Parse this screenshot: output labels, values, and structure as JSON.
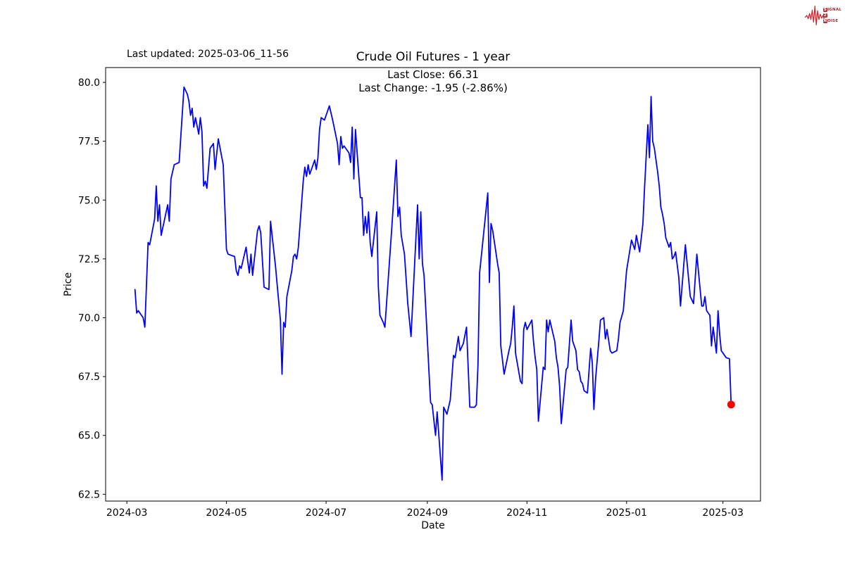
{
  "figure": {
    "last_updated": "Last updated: 2025-03-06_11-56",
    "title": "Crude Oil Futures - 1 year",
    "annotation_line1": "Last Close: 66.31",
    "annotation_line2": "Last Change: -1.95 (-2.86%)"
  },
  "logo": {
    "line1_boxed": "S",
    "line1_rest": "IGNAL",
    "line2_boxed": "2",
    "line2_rest": "",
    "line3_boxed": "N",
    "line3_rest": "OISE",
    "accent_color": "#c4272e"
  },
  "chart_data": {
    "type": "line",
    "title": "Crude Oil Futures - 1 year",
    "xlabel": "Date",
    "ylabel": "Price",
    "line_color": "#0000ff",
    "last_point_color": "#ff0000",
    "background": "#ffffff",
    "grid": false,
    "legend": false,
    "last_close": 66.31,
    "last_change": "-1.95 (-2.86%)",
    "x_range": [
      "2024-02-17",
      "2025-03-24"
    ],
    "ylim": [
      62.21,
      80.63
    ],
    "y_ticks": [
      {
        "v": 62.5,
        "label": "62.5"
      },
      {
        "v": 65.0,
        "label": "65.0"
      },
      {
        "v": 67.5,
        "label": "67.5"
      },
      {
        "v": 70.0,
        "label": "70.0"
      },
      {
        "v": 72.5,
        "label": "72.5"
      },
      {
        "v": 75.0,
        "label": "75.0"
      },
      {
        "v": 77.5,
        "label": "77.5"
      },
      {
        "v": 80.0,
        "label": "80.0"
      }
    ],
    "x_ticks": [
      {
        "date": "2024-03-01",
        "label": "2024-03"
      },
      {
        "date": "2024-05-01",
        "label": "2024-05"
      },
      {
        "date": "2024-07-01",
        "label": "2024-07"
      },
      {
        "date": "2024-09-01",
        "label": "2024-09"
      },
      {
        "date": "2024-11-01",
        "label": "2024-11"
      },
      {
        "date": "2025-01-01",
        "label": "2025-01"
      },
      {
        "date": "2025-03-01",
        "label": "2025-03"
      }
    ],
    "series": [
      {
        "name": "Crude Oil Futures",
        "points": [
          [
            "2024-03-06",
            71.2
          ],
          [
            "2024-03-07",
            70.2
          ],
          [
            "2024-03-08",
            70.3
          ],
          [
            "2024-03-11",
            70.0
          ],
          [
            "2024-03-12",
            69.6
          ],
          [
            "2024-03-14",
            73.2
          ],
          [
            "2024-03-15",
            73.1
          ],
          [
            "2024-03-18",
            74.2
          ],
          [
            "2024-03-19",
            75.6
          ],
          [
            "2024-03-20",
            74.1
          ],
          [
            "2024-03-21",
            74.8
          ],
          [
            "2024-03-22",
            73.5
          ],
          [
            "2024-03-26",
            74.8
          ],
          [
            "2024-03-27",
            74.1
          ],
          [
            "2024-03-28",
            75.9
          ],
          [
            "2024-03-30",
            76.5
          ],
          [
            "2024-04-02",
            76.6
          ],
          [
            "2024-04-05",
            79.8
          ],
          [
            "2024-04-07",
            79.5
          ],
          [
            "2024-04-08",
            79.2
          ],
          [
            "2024-04-09",
            78.6
          ],
          [
            "2024-04-10",
            78.9
          ],
          [
            "2024-04-11",
            78.1
          ],
          [
            "2024-04-12",
            78.5
          ],
          [
            "2024-04-14",
            77.8
          ],
          [
            "2024-04-15",
            78.5
          ],
          [
            "2024-04-16",
            77.9
          ],
          [
            "2024-04-17",
            75.6
          ],
          [
            "2024-04-18",
            75.8
          ],
          [
            "2024-04-19",
            75.5
          ],
          [
            "2024-04-21",
            77.2
          ],
          [
            "2024-04-23",
            77.4
          ],
          [
            "2024-04-24",
            76.3
          ],
          [
            "2024-04-26",
            77.6
          ],
          [
            "2024-04-29",
            76.5
          ],
          [
            "2024-05-01",
            72.9
          ],
          [
            "2024-05-02",
            72.7
          ],
          [
            "2024-05-06",
            72.6
          ],
          [
            "2024-05-07",
            72.0
          ],
          [
            "2024-05-08",
            71.8
          ],
          [
            "2024-05-09",
            72.2
          ],
          [
            "2024-05-10",
            72.1
          ],
          [
            "2024-05-13",
            73.0
          ],
          [
            "2024-05-14",
            72.4
          ],
          [
            "2024-05-15",
            71.9
          ],
          [
            "2024-05-16",
            72.7
          ],
          [
            "2024-05-17",
            71.8
          ],
          [
            "2024-05-20",
            73.7
          ],
          [
            "2024-05-21",
            73.9
          ],
          [
            "2024-05-22",
            73.6
          ],
          [
            "2024-05-24",
            71.3
          ],
          [
            "2024-05-27",
            71.2
          ],
          [
            "2024-05-28",
            74.1
          ],
          [
            "2024-05-31",
            72.2
          ],
          [
            "2024-06-03",
            69.9
          ],
          [
            "2024-06-04",
            67.6
          ],
          [
            "2024-06-05",
            69.8
          ],
          [
            "2024-06-06",
            69.6
          ],
          [
            "2024-06-07",
            70.9
          ],
          [
            "2024-06-10",
            72.0
          ],
          [
            "2024-06-11",
            72.6
          ],
          [
            "2024-06-12",
            72.7
          ],
          [
            "2024-06-13",
            72.5
          ],
          [
            "2024-06-14",
            73.0
          ],
          [
            "2024-06-17",
            75.8
          ],
          [
            "2024-06-18",
            76.4
          ],
          [
            "2024-06-19",
            76.0
          ],
          [
            "2024-06-20",
            76.5
          ],
          [
            "2024-06-21",
            76.1
          ],
          [
            "2024-06-24",
            76.7
          ],
          [
            "2024-06-25",
            76.3
          ],
          [
            "2024-06-26",
            76.8
          ],
          [
            "2024-06-27",
            78.0
          ],
          [
            "2024-06-28",
            78.5
          ],
          [
            "2024-06-30",
            78.4
          ],
          [
            "2024-07-03",
            79.0
          ],
          [
            "2024-07-05",
            78.4
          ],
          [
            "2024-07-08",
            77.4
          ],
          [
            "2024-07-09",
            76.5
          ],
          [
            "2024-07-10",
            77.7
          ],
          [
            "2024-07-11",
            77.2
          ],
          [
            "2024-07-12",
            77.3
          ],
          [
            "2024-07-15",
            77.0
          ],
          [
            "2024-07-16",
            76.6
          ],
          [
            "2024-07-17",
            78.1
          ],
          [
            "2024-07-18",
            75.9
          ],
          [
            "2024-07-19",
            78.0
          ],
          [
            "2024-07-22",
            75.1
          ],
          [
            "2024-07-23",
            75.1
          ],
          [
            "2024-07-24",
            73.5
          ],
          [
            "2024-07-25",
            74.3
          ],
          [
            "2024-07-26",
            73.6
          ],
          [
            "2024-07-27",
            74.5
          ],
          [
            "2024-07-28",
            73.2
          ],
          [
            "2024-07-29",
            72.6
          ],
          [
            "2024-08-01",
            74.5
          ],
          [
            "2024-08-02",
            71.3
          ],
          [
            "2024-08-03",
            70.1
          ],
          [
            "2024-08-05",
            69.8
          ],
          [
            "2024-08-06",
            69.6
          ],
          [
            "2024-08-10",
            73.6
          ],
          [
            "2024-08-13",
            76.7
          ],
          [
            "2024-08-14",
            74.3
          ],
          [
            "2024-08-15",
            74.7
          ],
          [
            "2024-08-16",
            73.5
          ],
          [
            "2024-08-18",
            72.7
          ],
          [
            "2024-08-20",
            70.6
          ],
          [
            "2024-08-22",
            69.2
          ],
          [
            "2024-08-26",
            74.8
          ],
          [
            "2024-08-27",
            72.5
          ],
          [
            "2024-08-28",
            74.5
          ],
          [
            "2024-08-29",
            72.3
          ],
          [
            "2024-08-30",
            71.8
          ],
          [
            "2024-09-02",
            67.7
          ],
          [
            "2024-09-03",
            66.4
          ],
          [
            "2024-09-04",
            66.3
          ],
          [
            "2024-09-06",
            65.0
          ],
          [
            "2024-09-07",
            66.0
          ],
          [
            "2024-09-10",
            63.1
          ],
          [
            "2024-09-11",
            66.2
          ],
          [
            "2024-09-13",
            65.9
          ],
          [
            "2024-09-15",
            66.5
          ],
          [
            "2024-09-17",
            68.4
          ],
          [
            "2024-09-18",
            68.3
          ],
          [
            "2024-09-20",
            69.2
          ],
          [
            "2024-09-21",
            68.6
          ],
          [
            "2024-09-23",
            68.9
          ],
          [
            "2024-09-25",
            69.6
          ],
          [
            "2024-09-27",
            66.2
          ],
          [
            "2024-09-30",
            66.2
          ],
          [
            "2024-10-01",
            66.3
          ],
          [
            "2024-10-02",
            68.0
          ],
          [
            "2024-10-03",
            71.9
          ],
          [
            "2024-10-08",
            75.3
          ],
          [
            "2024-10-09",
            71.5
          ],
          [
            "2024-10-10",
            74.0
          ],
          [
            "2024-10-11",
            73.7
          ],
          [
            "2024-10-14",
            72.3
          ],
          [
            "2024-10-15",
            71.9
          ],
          [
            "2024-10-16",
            68.8
          ],
          [
            "2024-10-17",
            68.2
          ],
          [
            "2024-10-18",
            67.6
          ],
          [
            "2024-10-21",
            68.6
          ],
          [
            "2024-10-22",
            68.9
          ],
          [
            "2024-10-23",
            69.6
          ],
          [
            "2024-10-24",
            70.5
          ],
          [
            "2024-10-25",
            68.5
          ],
          [
            "2024-10-28",
            67.3
          ],
          [
            "2024-10-29",
            67.2
          ],
          [
            "2024-10-30",
            69.5
          ],
          [
            "2024-10-31",
            69.8
          ],
          [
            "2024-11-01",
            69.5
          ],
          [
            "2024-11-04",
            69.9
          ],
          [
            "2024-11-05",
            69.0
          ],
          [
            "2024-11-06",
            68.3
          ],
          [
            "2024-11-07",
            67.8
          ],
          [
            "2024-11-08",
            65.6
          ],
          [
            "2024-11-11",
            67.9
          ],
          [
            "2024-11-12",
            67.8
          ],
          [
            "2024-11-13",
            69.9
          ],
          [
            "2024-11-14",
            69.4
          ],
          [
            "2024-11-15",
            69.9
          ],
          [
            "2024-11-18",
            69.0
          ],
          [
            "2024-11-19",
            68.3
          ],
          [
            "2024-11-20",
            67.9
          ],
          [
            "2024-11-21",
            67.1
          ],
          [
            "2024-11-22",
            65.5
          ],
          [
            "2024-11-25",
            67.8
          ],
          [
            "2024-11-26",
            67.9
          ],
          [
            "2024-11-28",
            69.9
          ],
          [
            "2024-11-29",
            69.0
          ],
          [
            "2024-12-01",
            68.6
          ],
          [
            "2024-12-02",
            67.8
          ],
          [
            "2024-12-03",
            67.7
          ],
          [
            "2024-12-04",
            67.3
          ],
          [
            "2024-12-05",
            67.2
          ],
          [
            "2024-12-06",
            66.9
          ],
          [
            "2024-12-08",
            66.8
          ],
          [
            "2024-12-10",
            68.7
          ],
          [
            "2024-12-11",
            68.1
          ],
          [
            "2024-12-12",
            66.1
          ],
          [
            "2024-12-13",
            67.4
          ],
          [
            "2024-12-15",
            69.0
          ],
          [
            "2024-12-16",
            69.9
          ],
          [
            "2024-12-18",
            70.0
          ],
          [
            "2024-12-19",
            69.1
          ],
          [
            "2024-12-20",
            69.5
          ],
          [
            "2024-12-22",
            68.6
          ],
          [
            "2024-12-23",
            68.5
          ],
          [
            "2024-12-26",
            68.6
          ],
          [
            "2024-12-27",
            69.1
          ],
          [
            "2024-12-28",
            69.8
          ],
          [
            "2024-12-30",
            70.3
          ],
          [
            "2025-01-01",
            72.0
          ],
          [
            "2025-01-04",
            73.3
          ],
          [
            "2025-01-06",
            72.9
          ],
          [
            "2025-01-07",
            73.5
          ],
          [
            "2025-01-09",
            72.8
          ],
          [
            "2025-01-11",
            74.0
          ],
          [
            "2025-01-12",
            75.5
          ],
          [
            "2025-01-14",
            78.2
          ],
          [
            "2025-01-15",
            76.8
          ],
          [
            "2025-01-16",
            79.4
          ],
          [
            "2025-01-17",
            77.5
          ],
          [
            "2025-01-18",
            77.2
          ],
          [
            "2025-01-20",
            76.2
          ],
          [
            "2025-01-21",
            75.6
          ],
          [
            "2025-01-22",
            74.7
          ],
          [
            "2025-01-23",
            74.4
          ],
          [
            "2025-01-24",
            74.0
          ],
          [
            "2025-01-25",
            73.4
          ],
          [
            "2025-01-27",
            73.0
          ],
          [
            "2025-01-28",
            73.2
          ],
          [
            "2025-01-29",
            72.5
          ],
          [
            "2025-01-30",
            72.6
          ],
          [
            "2025-01-31",
            72.8
          ],
          [
            "2025-02-02",
            71.7
          ],
          [
            "2025-02-03",
            70.5
          ],
          [
            "2025-02-06",
            73.1
          ],
          [
            "2025-02-09",
            70.9
          ],
          [
            "2025-02-11",
            70.6
          ],
          [
            "2025-02-13",
            72.7
          ],
          [
            "2025-02-16",
            70.5
          ],
          [
            "2025-02-17",
            70.5
          ],
          [
            "2025-02-18",
            70.9
          ],
          [
            "2025-02-19",
            70.3
          ],
          [
            "2025-02-21",
            70.1
          ],
          [
            "2025-02-22",
            68.8
          ],
          [
            "2025-02-23",
            69.6
          ],
          [
            "2025-02-25",
            68.5
          ],
          [
            "2025-02-26",
            70.3
          ],
          [
            "2025-02-27",
            69.3
          ],
          [
            "2025-02-28",
            68.6
          ],
          [
            "2025-03-03",
            68.3
          ],
          [
            "2025-03-05",
            68.26
          ],
          [
            "2025-03-06",
            66.31
          ]
        ]
      }
    ]
  }
}
